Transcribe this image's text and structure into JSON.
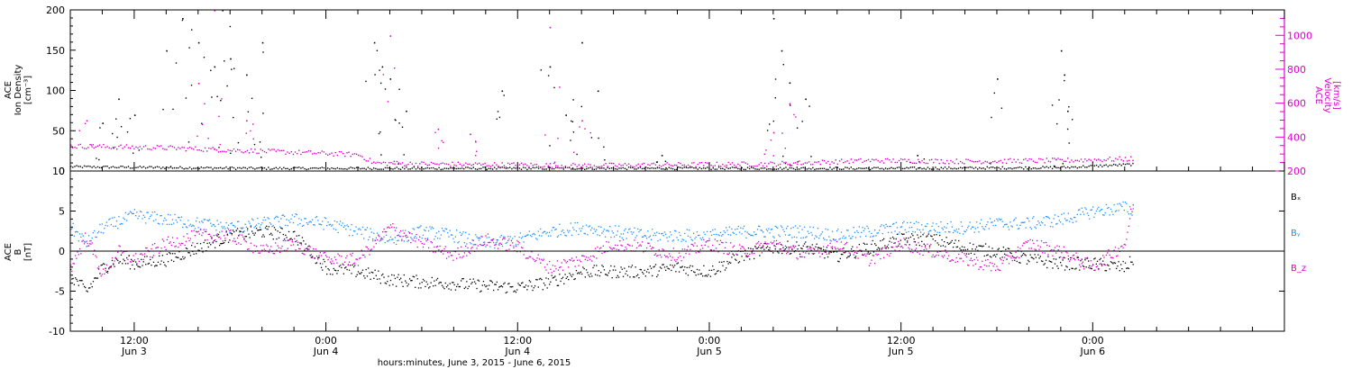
{
  "colors": {
    "black": "#000000",
    "magenta": "#dd00cc",
    "blue": "#1e90ff"
  },
  "xaxis": {
    "label": "hours:minutes, June  3, 2015 - June  6, 2015",
    "ticks": [
      {
        "time": "12:00",
        "day": "Jun 3",
        "hours_since_jun3_0000": 12
      },
      {
        "time": "0:00",
        "day": "Jun 4",
        "hours_since_jun3_0000": 24
      },
      {
        "time": "12:00",
        "day": "Jun 4",
        "hours_since_jun3_0000": 36
      },
      {
        "time": "0:00",
        "day": "Jun 5",
        "hours_since_jun3_0000": 48
      },
      {
        "time": "12:00",
        "day": "Jun 5",
        "hours_since_jun3_0000": 60
      },
      {
        "time": "0:00",
        "day": "Jun 6",
        "hours_since_jun3_0000": 72
      }
    ]
  },
  "chart_data": [
    {
      "type": "scatter",
      "panel": "top",
      "ylabel_left": [
        "ACE",
        "Ion Density",
        "[cm⁻³]"
      ],
      "ylabel_right": [
        "ACE",
        "Velocity",
        "[km/s]"
      ],
      "ylim_left": [
        0,
        200
      ],
      "yticks_left": [
        0,
        50,
        100,
        150,
        200
      ],
      "ylim_right": [
        200,
        1150
      ],
      "yticks_right": [
        200,
        400,
        600,
        800,
        1000
      ],
      "xlim_hours": [
        8,
        84
      ],
      "series": [
        {
          "name": "Ion Density",
          "color": "black",
          "axis": "left",
          "baseline": [
            [
              8,
              6
            ],
            [
              20,
              4
            ],
            [
              40,
              4
            ],
            [
              60,
              4
            ],
            [
              70,
              5
            ],
            [
              74.5,
              9
            ]
          ],
          "spikes": [
            [
              10,
              60
            ],
            [
              11,
              90
            ],
            [
              12,
              70
            ],
            [
              14,
              150
            ],
            [
              15,
              190
            ],
            [
              16,
              160
            ],
            [
              17,
              130
            ],
            [
              17.5,
              200
            ],
            [
              18,
              140
            ],
            [
              19,
              120
            ],
            [
              20,
              160
            ],
            [
              27,
              160
            ],
            [
              27.5,
              130
            ],
            [
              28,
              115
            ],
            [
              29,
              75
            ],
            [
              35,
              100
            ],
            [
              38,
              130
            ],
            [
              39,
              70
            ],
            [
              40,
              160
            ],
            [
              41,
              100
            ],
            [
              45,
              20
            ],
            [
              52,
              190
            ],
            [
              52.5,
              150
            ],
            [
              53,
              110
            ],
            [
              54,
              90
            ],
            [
              61,
              20
            ],
            [
              66,
              115
            ],
            [
              70,
              150
            ],
            [
              70.2,
              120
            ],
            [
              70.4,
              75
            ]
          ]
        },
        {
          "name": "Velocity",
          "color": "magenta",
          "axis": "right",
          "baseline": [
            [
              8,
              350
            ],
            [
              14,
              340
            ],
            [
              20,
              320
            ],
            [
              26,
              300
            ],
            [
              27,
              250
            ],
            [
              30,
              245
            ],
            [
              40,
              235
            ],
            [
              52,
              245
            ],
            [
              58,
              265
            ],
            [
              64,
              260
            ],
            [
              70,
              265
            ],
            [
              74.5,
              275
            ]
          ],
          "spikes": [
            [
              9,
              500
            ],
            [
              16,
              720
            ],
            [
              17,
              1150
            ],
            [
              19,
              500
            ],
            [
              28,
              1000
            ],
            [
              31,
              450
            ],
            [
              33,
              420
            ],
            [
              38,
              1050
            ],
            [
              40,
              500
            ],
            [
              52,
              430
            ],
            [
              53,
              600
            ]
          ]
        }
      ]
    },
    {
      "type": "scatter",
      "panel": "bottom",
      "ylabel_left": [
        "ACE",
        "B",
        "[nT]"
      ],
      "ylim": [
        -10,
        10
      ],
      "yticks": [
        -10,
        -5,
        0,
        5,
        10
      ],
      "zero_line": true,
      "xlim_hours": [
        8,
        84
      ],
      "legend": [
        "Bₓ",
        "Bᵧ",
        "B_z"
      ],
      "series": [
        {
          "name": "Bₓ",
          "color": "black",
          "points": [
            [
              8,
              -3
            ],
            [
              9,
              -5
            ],
            [
              10,
              -2
            ],
            [
              11,
              -1
            ],
            [
              12,
              -1.5
            ],
            [
              14,
              -1
            ],
            [
              16,
              0.5
            ],
            [
              18,
              2
            ],
            [
              20,
              2.5
            ],
            [
              22,
              2
            ],
            [
              24,
              -2
            ],
            [
              26,
              -2.5
            ],
            [
              28,
              -3.5
            ],
            [
              30,
              -3.8
            ],
            [
              32,
              -4
            ],
            [
              34,
              -4.3
            ],
            [
              36,
              -4.5
            ],
            [
              38,
              -3.8
            ],
            [
              40,
              -2.5
            ],
            [
              42,
              -2.5
            ],
            [
              44,
              -2.5
            ],
            [
              46,
              -2
            ],
            [
              48,
              -2.5
            ],
            [
              50,
              -0.5
            ],
            [
              52,
              0.5
            ],
            [
              54,
              0.5
            ],
            [
              56,
              -0.5
            ],
            [
              58,
              0.5
            ],
            [
              60,
              1.5
            ],
            [
              62,
              1.5
            ],
            [
              64,
              0.5
            ],
            [
              66,
              0
            ],
            [
              68,
              -1
            ],
            [
              70,
              -1.5
            ],
            [
              72,
              -1.5
            ],
            [
              74,
              -2
            ],
            [
              74.5,
              -1
            ]
          ]
        },
        {
          "name": "Bᵧ",
          "color": "blue",
          "points": [
            [
              8,
              3
            ],
            [
              9,
              1
            ],
            [
              10,
              3
            ],
            [
              12,
              4.5
            ],
            [
              14,
              4
            ],
            [
              16,
              3.5
            ],
            [
              18,
              3
            ],
            [
              20,
              3.5
            ],
            [
              22,
              4
            ],
            [
              24,
              3.5
            ],
            [
              26,
              2.5
            ],
            [
              28,
              1.5
            ],
            [
              30,
              2.5
            ],
            [
              32,
              2
            ],
            [
              34,
              1
            ],
            [
              36,
              1.5
            ],
            [
              38,
              2.5
            ],
            [
              40,
              3
            ],
            [
              42,
              2.5
            ],
            [
              44,
              2
            ],
            [
              46,
              2
            ],
            [
              48,
              2
            ],
            [
              50,
              2.5
            ],
            [
              52,
              2.5
            ],
            [
              54,
              2.5
            ],
            [
              56,
              2
            ],
            [
              58,
              2.5
            ],
            [
              60,
              3
            ],
            [
              62,
              3
            ],
            [
              64,
              3
            ],
            [
              66,
              3.5
            ],
            [
              68,
              3.5
            ],
            [
              70,
              4
            ],
            [
              72,
              5
            ],
            [
              74,
              5.5
            ],
            [
              74.5,
              5
            ]
          ]
        },
        {
          "name": "B_z",
          "color": "magenta",
          "points": [
            [
              8,
              -2
            ],
            [
              9,
              2
            ],
            [
              10,
              -3
            ],
            [
              11,
              0
            ],
            [
              12,
              -1
            ],
            [
              14,
              1
            ],
            [
              16,
              2
            ],
            [
              18,
              2
            ],
            [
              20,
              0
            ],
            [
              22,
              1
            ],
            [
              24,
              -1
            ],
            [
              26,
              -1
            ],
            [
              28,
              3
            ],
            [
              30,
              1
            ],
            [
              32,
              -0.5
            ],
            [
              34,
              1.5
            ],
            [
              36,
              0.5
            ],
            [
              38,
              -2
            ],
            [
              40,
              -1
            ],
            [
              42,
              1
            ],
            [
              44,
              0.5
            ],
            [
              46,
              -0.5
            ],
            [
              48,
              1
            ],
            [
              50,
              0
            ],
            [
              52,
              1
            ],
            [
              54,
              -0.5
            ],
            [
              56,
              1
            ],
            [
              58,
              -1
            ],
            [
              60,
              1
            ],
            [
              62,
              0
            ],
            [
              64,
              -1
            ],
            [
              66,
              -2
            ],
            [
              68,
              1
            ],
            [
              70,
              0
            ],
            [
              72,
              -2
            ],
            [
              74,
              1
            ],
            [
              74.5,
              6
            ]
          ]
        }
      ]
    }
  ]
}
